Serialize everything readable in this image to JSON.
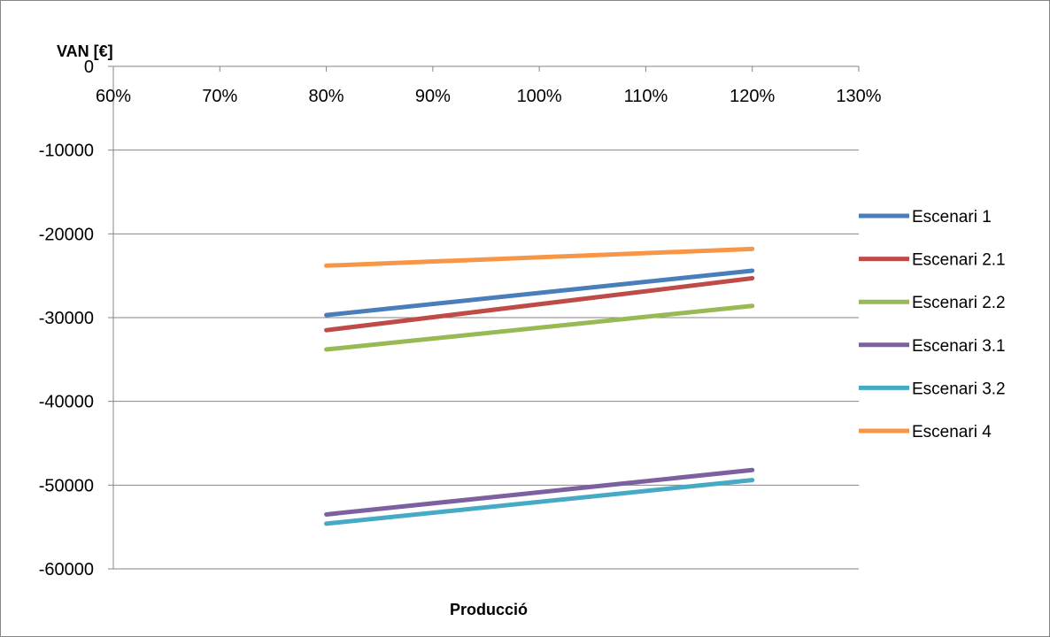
{
  "chart_data": {
    "type": "line",
    "xlabel": "Producció",
    "ylabel": "VAN [€]",
    "x_ticks": [
      "60%",
      "70%",
      "80%",
      "90%",
      "100%",
      "110%",
      "120%",
      "130%"
    ],
    "x_range": [
      60,
      130
    ],
    "y_ticks": [
      "0",
      "-10000",
      "-20000",
      "-30000",
      "-40000",
      "-50000",
      "-60000"
    ],
    "ylim": [
      -60000,
      0
    ],
    "grid": "horizontal",
    "legend_position": "right",
    "x": [
      80,
      120
    ],
    "series": [
      {
        "name": "Escenari 1",
        "color": "#4a7ebb",
        "values": [
          -29700,
          -24400
        ]
      },
      {
        "name": "Escenari 2.1",
        "color": "#be4b48",
        "values": [
          -31500,
          -25300
        ]
      },
      {
        "name": "Escenari 2.2",
        "color": "#98b954",
        "values": [
          -33800,
          -28600
        ]
      },
      {
        "name": "Escenari 3.1",
        "color": "#7d60a0",
        "values": [
          -53500,
          -48200
        ]
      },
      {
        "name": "Escenari 3.2",
        "color": "#46aac5",
        "values": [
          -54600,
          -49400
        ]
      },
      {
        "name": "Escenari 4",
        "color": "#f79646",
        "values": [
          -23800,
          -21800
        ]
      }
    ]
  }
}
